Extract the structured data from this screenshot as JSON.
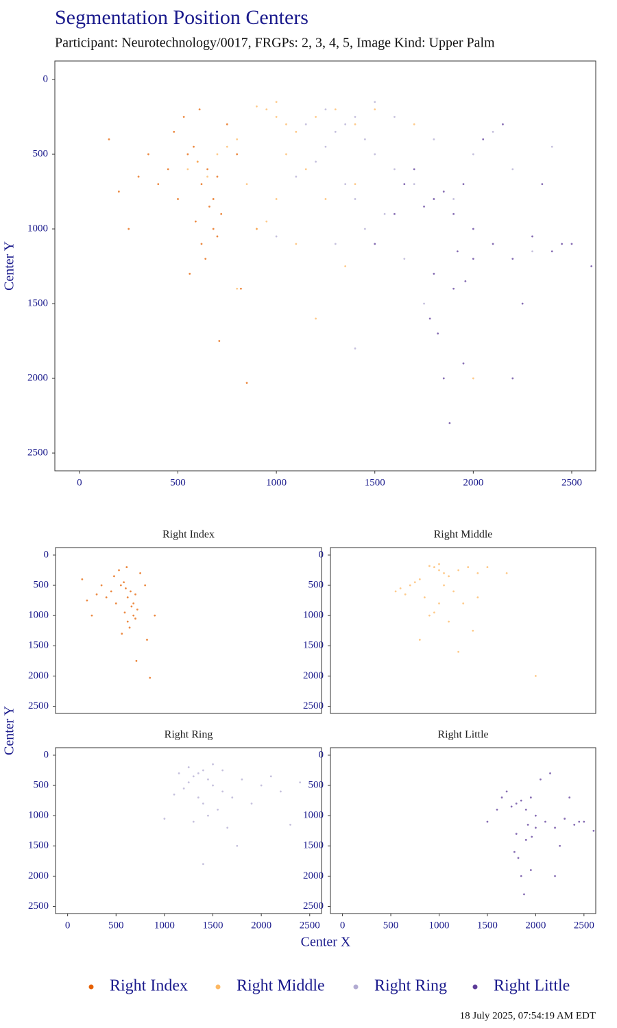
{
  "chart_data": {
    "type": "scatter",
    "title": "Segmentation Position Centers",
    "subtitle": "Participant: Neurotechnology/0017, FRGPs: 2, 3, 4, 5, Image Kind: Upper Palm",
    "x_label": "Center X",
    "y_label": "Center Y",
    "xlim": [
      -125,
      2622
    ],
    "ylim": [
      -124,
      2619
    ],
    "y_reversed": true,
    "xticks": [
      0,
      500,
      1000,
      1500,
      2000,
      2500
    ],
    "yticks": [
      0,
      500,
      1000,
      1500,
      2000,
      2500
    ],
    "legend": "bottom",
    "footnote": "18 July 2025, 07:54:19 AM EDT",
    "series": [
      {
        "name": "Right Index",
        "color": "#e66101",
        "x": [
          600,
          650,
          550,
          700,
          620,
          580,
          500,
          720,
          680,
          450,
          400,
          350,
          300,
          200,
          150,
          750,
          800,
          620,
          640,
          560,
          700,
          480,
          530,
          660,
          590,
          250,
          820,
          850,
          900,
          680,
          710,
          610
        ],
        "y": [
          550,
          600,
          500,
          650,
          700,
          450,
          800,
          900,
          1000,
          600,
          700,
          500,
          650,
          750,
          400,
          300,
          500,
          1100,
          1200,
          1300,
          1050,
          350,
          250,
          850,
          950,
          1000,
          1400,
          2030,
          1000,
          800,
          1750,
          200
        ]
      },
      {
        "name": "Right Middle",
        "color": "#fdb863",
        "x": [
          950,
          1000,
          900,
          1050,
          1100,
          800,
          750,
          700,
          1200,
          1300,
          1400,
          1150,
          850,
          650,
          600,
          1000,
          950,
          1250,
          1500,
          1700,
          550,
          900,
          1100,
          1050,
          1350,
          1200,
          800,
          1000,
          2000,
          1400
        ],
        "y": [
          200,
          250,
          180,
          300,
          350,
          400,
          450,
          500,
          250,
          200,
          300,
          600,
          700,
          650,
          550,
          800,
          950,
          800,
          200,
          300,
          600,
          1000,
          1100,
          500,
          1250,
          1600,
          1400,
          150,
          2000,
          700
        ]
      },
      {
        "name": "Right Ring",
        "color": "#b2abd2",
        "x": [
          1350,
          1300,
          1400,
          1450,
          1250,
          1500,
          1600,
          1700,
          1200,
          1100,
          1400,
          1550,
          1800,
          2000,
          2200,
          2400,
          1350,
          1450,
          1300,
          1650,
          1900,
          1500,
          1150,
          1000,
          1750,
          2100,
          1400,
          2300,
          1600,
          1250
        ],
        "y": [
          300,
          350,
          250,
          400,
          450,
          500,
          600,
          700,
          550,
          650,
          800,
          900,
          400,
          500,
          600,
          450,
          700,
          1000,
          1100,
          1200,
          800,
          150,
          300,
          1050,
          1500,
          350,
          1800,
          1150,
          250,
          200
        ]
      },
      {
        "name": "Right Little",
        "color": "#5e3c99",
        "x": [
          1800,
          1850,
          1750,
          1900,
          1950,
          2000,
          2100,
          2200,
          2300,
          2400,
          2500,
          1700,
          1650,
          1800,
          1900,
          2000,
          2250,
          2450,
          1850,
          1950,
          2050,
          1600,
          1500,
          2600,
          2150,
          1880,
          1920,
          1780,
          2350,
          2200,
          1820,
          1960
        ],
        "y": [
          800,
          750,
          850,
          900,
          700,
          1000,
          1100,
          1200,
          1050,
          1150,
          1100,
          600,
          700,
          1300,
          1400,
          1200,
          1500,
          1100,
          2000,
          1900,
          400,
          900,
          1100,
          1250,
          300,
          2300,
          1150,
          1600,
          700,
          2000,
          1700,
          1350
        ]
      }
    ]
  }
}
